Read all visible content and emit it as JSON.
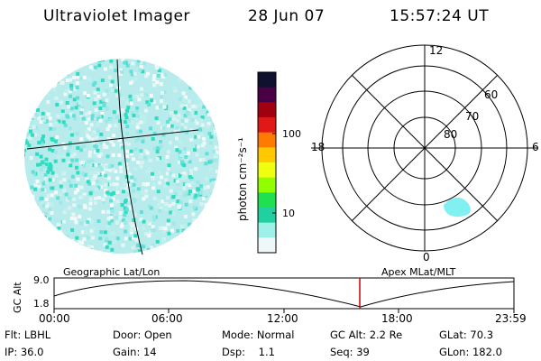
{
  "header": {
    "instrument": "Ultraviolet Imager",
    "date": "28 Jun 07",
    "time": "15:57:24 UT"
  },
  "colorbar": {
    "unit_label": "photon cm⁻²s⁻¹",
    "ticks": [
      "100",
      "10"
    ],
    "colors": [
      "#101030",
      "#4a0045",
      "#a00010",
      "#e01818",
      "#ff7a00",
      "#ffc800",
      "#f0ff10",
      "#90ff00",
      "#20e050",
      "#20d0a0",
      "#a0f0ea",
      "#eef8f8"
    ]
  },
  "polar_plot": {
    "hour_labels": [
      "12",
      "18",
      "6",
      "0"
    ],
    "lat_labels": [
      "60",
      "70",
      "80"
    ],
    "accent": "#80f0f0"
  },
  "orbit_plot": {
    "ylabel": "GC Alt",
    "y_ticks": [
      "9.0",
      "1.8"
    ],
    "left_label": "Geographic Lat/Lon",
    "right_label": "Apex MLat/MLT",
    "x_ticks": [
      "00:00",
      "06:00",
      "12:00",
      "18:00",
      "23:59"
    ],
    "marker_color": "#cc0000"
  },
  "info": {
    "filter": "Flt: LBHL",
    "door": "Door: Open",
    "mode": "Mode: Normal",
    "gc_alt": "GC Alt: 2.2 Re",
    "glat": "GLat: 70.3",
    "ip": "IP: 36.0",
    "gain": "Gain: 14",
    "dsp": "Dsp:    1.1",
    "seq": "Seq: 39",
    "glon": "GLon: 182.0"
  }
}
